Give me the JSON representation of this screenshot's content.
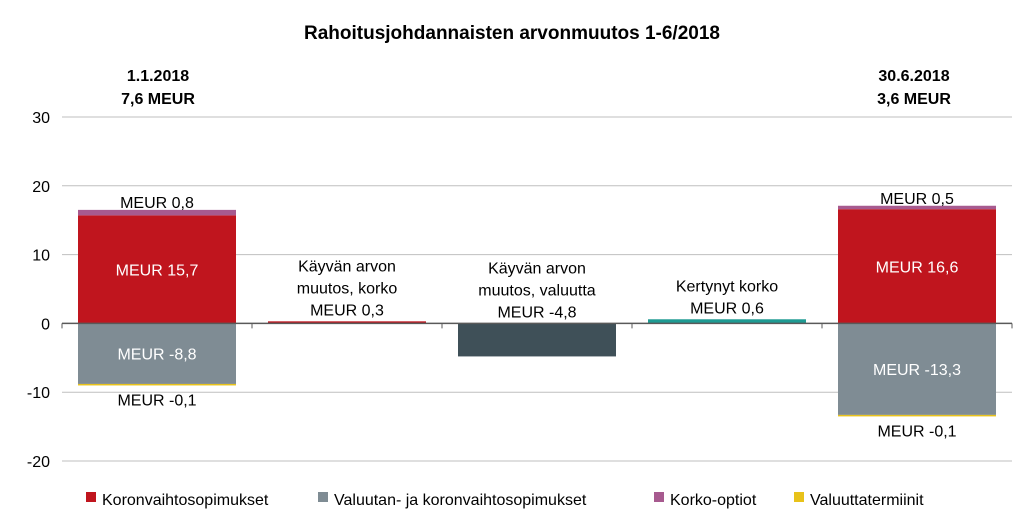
{
  "chart_data": {
    "type": "bar",
    "title": "Rahoitusjohdannaisten arvonmuutos 1-6/2018",
    "ylim": [
      -20,
      30
    ],
    "yticks": [
      -20,
      -10,
      0,
      10,
      20,
      30
    ],
    "grid": true,
    "legend_position": "bottom",
    "headers": [
      {
        "line1": "1.1.2018",
        "line2": "7,6 MEUR"
      },
      {
        "line1": "30.6.2018",
        "line2": "3,6 MEUR"
      }
    ],
    "series": [
      {
        "name": "Koronvaihtosopimukset",
        "color": "#c0151e"
      },
      {
        "name": "Valuutan- ja koronvaihtosopimukset",
        "color": "#7f8c94"
      },
      {
        "name": "Korko-optiot",
        "color": "#a75a8f"
      },
      {
        "name": "Valuuttatermiinit",
        "color": "#e8c21a"
      }
    ],
    "bars": [
      {
        "segments": [
          {
            "series": 0,
            "value": 15.7
          },
          {
            "series": 2,
            "value": 0.8
          },
          {
            "series": 1,
            "value": -8.8
          },
          {
            "series": 3,
            "value": -0.1
          }
        ],
        "labels": [
          {
            "text": "MEUR 0,8",
            "color": "#000000"
          },
          {
            "text": "MEUR 15,7",
            "color": "#ffffff"
          },
          {
            "text": "MEUR -8,8",
            "color": "#ffffff"
          },
          {
            "text": "MEUR -0,1",
            "color": "#000000"
          }
        ]
      },
      {
        "segments": [
          {
            "value": 0.3,
            "color": "#c0151e"
          }
        ],
        "labels": [
          {
            "text": "Käyvän arvon",
            "color": "#000000"
          },
          {
            "text": "muutos, korko",
            "color": "#000000"
          },
          {
            "text": "MEUR  0,3",
            "color": "#000000"
          }
        ]
      },
      {
        "segments": [
          {
            "value": -4.8,
            "color": "#3f5058"
          }
        ],
        "labels": [
          {
            "text": "Käyvän arvon",
            "color": "#000000"
          },
          {
            "text": "muutos, valuutta",
            "color": "#000000"
          },
          {
            "text": "MEUR  -4,8",
            "color": "#000000"
          }
        ]
      },
      {
        "segments": [
          {
            "value": 0.6,
            "color": "#1f9b93"
          }
        ],
        "labels": [
          {
            "text": "Kertynyt korko",
            "color": "#000000"
          },
          {
            "text": "MEUR  0,6",
            "color": "#000000"
          }
        ]
      },
      {
        "segments": [
          {
            "series": 0,
            "value": 16.6
          },
          {
            "series": 2,
            "value": 0.5
          },
          {
            "series": 1,
            "value": -13.3
          },
          {
            "series": 3,
            "value": -0.1
          }
        ],
        "labels": [
          {
            "text": "MEUR 0,5",
            "color": "#000000"
          },
          {
            "text": "MEUR 16,6",
            "color": "#ffffff"
          },
          {
            "text": "MEUR -13,3",
            "color": "#ffffff"
          },
          {
            "text": "MEUR -0,1",
            "color": "#000000"
          }
        ]
      }
    ]
  }
}
